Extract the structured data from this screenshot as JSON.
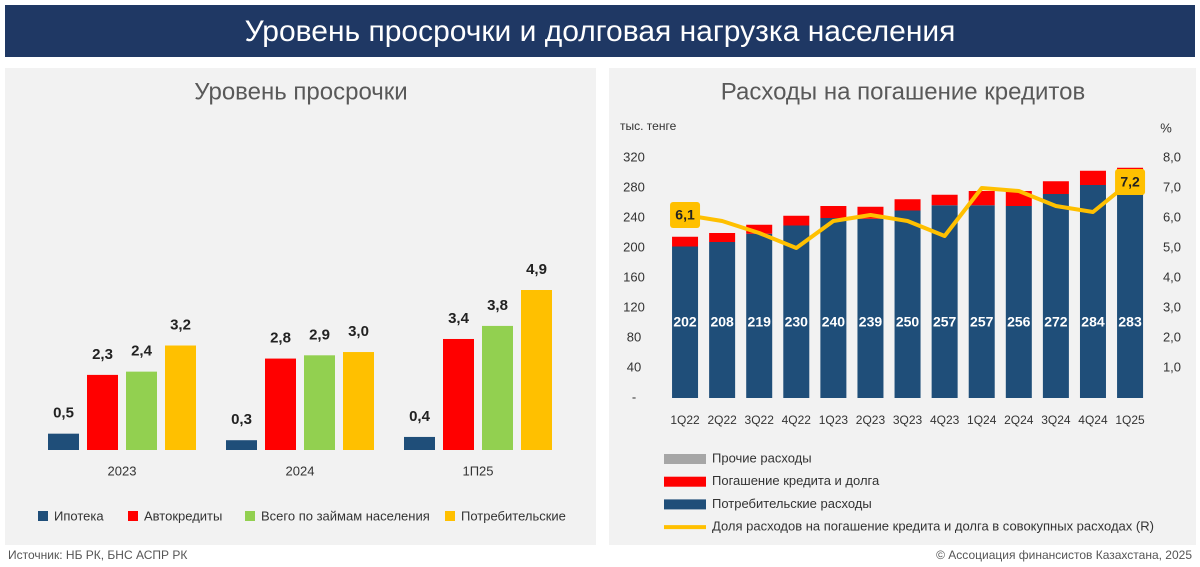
{
  "header": {
    "title": "Уровень просрочки и долговая нагрузка населения"
  },
  "footer": {
    "source": "Источник: НБ РК, БНС АСПР РК",
    "copyright": "© Ассоциация финансистов Казахстана, 2025"
  },
  "chart_data": [
    {
      "type": "bar",
      "title": "Уровень просрочки",
      "categories": [
        "2023",
        "2024",
        "1П25"
      ],
      "series": [
        {
          "name": "Ипотека",
          "color": "#1f4e79",
          "values": [
            0.5,
            0.3,
            0.4
          ],
          "value_labels": [
            "0,5",
            "0,3",
            "0,4"
          ]
        },
        {
          "name": "Автокредиты",
          "color": "#ff0000",
          "values": [
            2.3,
            2.8,
            3.4
          ],
          "value_labels": [
            "2,3",
            "2,8",
            "3,4"
          ]
        },
        {
          "name": "Всего по займам населения",
          "color": "#92d050",
          "values": [
            2.4,
            2.9,
            3.8
          ],
          "value_labels": [
            "2,4",
            "2,9",
            "3,8"
          ]
        },
        {
          "name": "Потребительские",
          "color": "#ffc000",
          "values": [
            3.2,
            3.0,
            4.9
          ],
          "value_labels": [
            "3,2",
            "3,0",
            "4,9"
          ]
        }
      ]
    },
    {
      "type": "combo",
      "title": "Расходы на погашение кредитов",
      "y_label": "тыс. тенге",
      "y2_label": "%",
      "categories": [
        "1Q22",
        "2Q22",
        "3Q22",
        "4Q22",
        "1Q23",
        "2Q23",
        "3Q23",
        "4Q23",
        "1Q24",
        "2Q24",
        "3Q24",
        "4Q24",
        "1Q25"
      ],
      "ylim": [
        0,
        320
      ],
      "yticks": [
        {
          "value": 0,
          "label": "-"
        },
        40,
        80,
        120,
        160,
        200,
        240,
        280,
        320
      ],
      "y2lim": [
        0,
        8
      ],
      "y2ticks": [
        {
          "value": 1,
          "label": "1,0"
        },
        {
          "value": 2,
          "label": "2,0"
        },
        {
          "value": 3,
          "label": "3,0"
        },
        {
          "value": 4,
          "label": "4,0"
        },
        {
          "value": 5,
          "label": "5,0"
        },
        {
          "value": 6,
          "label": "6,0"
        },
        {
          "value": 7,
          "label": "7,0"
        },
        {
          "value": 8,
          "label": "8,0"
        }
      ],
      "series": [
        {
          "name": "Потребительские расходы",
          "type": "bar",
          "color": "#1f4e79",
          "values": [
            202,
            208,
            219,
            230,
            240,
            239,
            250,
            257,
            257,
            256,
            272,
            284,
            283
          ]
        },
        {
          "name": "Погашение кредита и долга",
          "type": "bar",
          "color": "#ff0000",
          "values": [
            13,
            12,
            12,
            13,
            16,
            16,
            15,
            14,
            19,
            20,
            17,
            19,
            24
          ]
        },
        {
          "name": "Прочие расходы",
          "type": "bar",
          "color": "#a6a6a6",
          "values": [
            0,
            0,
            0,
            0,
            0,
            0,
            0,
            0,
            0,
            0,
            0,
            0,
            0
          ]
        },
        {
          "name": "Доля расходов на погашение кредита и долга в совокупных расходах (R)",
          "type": "line",
          "axis": "y2",
          "color": "#ffc000",
          "values": [
            6.1,
            5.9,
            5.5,
            5.0,
            5.9,
            6.1,
            5.9,
            5.4,
            7.0,
            6.9,
            6.4,
            6.2,
            7.2
          ],
          "value_labels": [
            "6,1",
            null,
            null,
            null,
            null,
            null,
            null,
            null,
            null,
            null,
            null,
            null,
            "7,2"
          ]
        }
      ]
    }
  ]
}
